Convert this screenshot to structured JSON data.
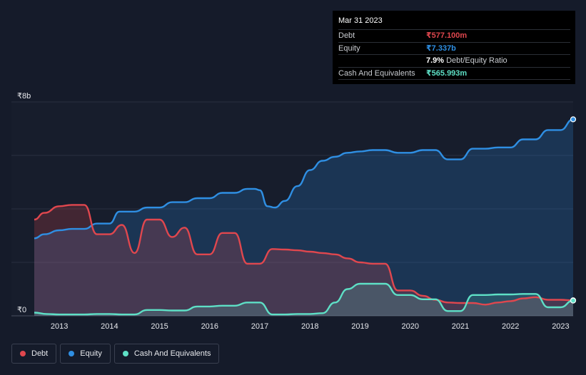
{
  "tooltip": {
    "date": "Mar 31 2023",
    "rows": [
      {
        "label": "Debt",
        "value": "₹577.100m",
        "color": "#e0474e"
      },
      {
        "label": "Equity",
        "value": "₹7.337b",
        "color": "#2f8fe3"
      },
      {
        "ratio_value": "7.9%",
        "ratio_label": "Debt/Equity Ratio"
      },
      {
        "label": "Cash And Equivalents",
        "value": "₹565.993m",
        "color": "#5ee0c6"
      }
    ]
  },
  "legend": [
    {
      "label": "Debt",
      "color": "#e0474e"
    },
    {
      "label": "Equity",
      "color": "#2f8fe3"
    },
    {
      "label": "Cash And Equivalents",
      "color": "#5ee0c6"
    }
  ],
  "chart_data": {
    "type": "area",
    "title": "",
    "xlabel": "",
    "ylabel": "",
    "y_unit": "₹ billions",
    "xlim": [
      2012.5,
      2023.25
    ],
    "ylim": [
      0,
      8
    ],
    "y_tick_labels": [
      {
        "value": 8,
        "label": "₹8b"
      },
      {
        "value": 0,
        "label": "₹0"
      }
    ],
    "gridlines": [
      0,
      2,
      4,
      6,
      8
    ],
    "x_ticks": [
      2013,
      2014,
      2015,
      2016,
      2017,
      2018,
      2019,
      2020,
      2021,
      2022,
      2023
    ],
    "x_tick_labels": [
      "2013",
      "2014",
      "2015",
      "2016",
      "2017",
      "2018",
      "2019",
      "2020",
      "2021",
      "2022",
      "2023"
    ],
    "series": [
      {
        "name": "Equity",
        "color": "#2f8fe3",
        "x": [
          2012.5,
          2012.7,
          2013.0,
          2013.25,
          2013.5,
          2013.75,
          2014.0,
          2014.2,
          2014.5,
          2014.75,
          2015.0,
          2015.25,
          2015.5,
          2015.75,
          2016.0,
          2016.25,
          2016.5,
          2016.75,
          2016.9,
          2017.0,
          2017.15,
          2017.3,
          2017.5,
          2017.75,
          2018.0,
          2018.25,
          2018.5,
          2018.75,
          2019.0,
          2019.25,
          2019.5,
          2019.75,
          2020.0,
          2020.25,
          2020.5,
          2020.75,
          2021.0,
          2021.25,
          2021.5,
          2021.75,
          2022.0,
          2022.25,
          2022.5,
          2022.75,
          2023.0,
          2023.25
        ],
        "values": [
          2.9,
          3.05,
          3.2,
          3.25,
          3.25,
          3.45,
          3.45,
          3.9,
          3.9,
          4.05,
          4.05,
          4.25,
          4.25,
          4.4,
          4.4,
          4.6,
          4.6,
          4.75,
          4.75,
          4.7,
          4.1,
          4.05,
          4.3,
          4.85,
          5.45,
          5.8,
          5.95,
          6.1,
          6.15,
          6.2,
          6.2,
          6.1,
          6.1,
          6.2,
          6.2,
          5.85,
          5.85,
          6.25,
          6.25,
          6.3,
          6.3,
          6.6,
          6.6,
          6.95,
          6.95,
          7.35
        ]
      },
      {
        "name": "Debt",
        "color": "#e0474e",
        "x": [
          2012.5,
          2012.7,
          2013.0,
          2013.25,
          2013.5,
          2013.75,
          2014.0,
          2014.25,
          2014.5,
          2014.75,
          2015.0,
          2015.25,
          2015.5,
          2015.75,
          2016.0,
          2016.25,
          2016.5,
          2016.75,
          2017.0,
          2017.25,
          2017.5,
          2017.75,
          2018.0,
          2018.25,
          2018.5,
          2018.75,
          2019.0,
          2019.25,
          2019.5,
          2019.75,
          2020.0,
          2020.25,
          2020.5,
          2020.75,
          2021.0,
          2021.25,
          2021.5,
          2021.75,
          2022.0,
          2022.25,
          2022.5,
          2022.75,
          2023.0,
          2023.25
        ],
        "values": [
          3.6,
          3.85,
          4.1,
          4.15,
          4.15,
          3.05,
          3.05,
          3.4,
          2.35,
          3.6,
          3.6,
          2.95,
          3.3,
          2.3,
          2.3,
          3.1,
          3.1,
          1.95,
          1.95,
          2.5,
          2.48,
          2.45,
          2.4,
          2.35,
          2.3,
          2.15,
          2.0,
          1.95,
          1.95,
          0.95,
          0.95,
          0.75,
          0.6,
          0.5,
          0.48,
          0.48,
          0.42,
          0.5,
          0.55,
          0.65,
          0.7,
          0.6,
          0.6,
          0.58
        ]
      },
      {
        "name": "Cash And Equivalents",
        "color": "#5ee0c6",
        "x": [
          2012.5,
          2012.75,
          2013.0,
          2013.25,
          2013.5,
          2013.75,
          2014.0,
          2014.25,
          2014.5,
          2014.75,
          2015.0,
          2015.25,
          2015.5,
          2015.75,
          2016.0,
          2016.25,
          2016.5,
          2016.75,
          2017.0,
          2017.25,
          2017.5,
          2017.75,
          2018.0,
          2018.25,
          2018.5,
          2018.75,
          2019.0,
          2019.25,
          2019.5,
          2019.75,
          2020.0,
          2020.25,
          2020.5,
          2020.75,
          2021.0,
          2021.25,
          2021.5,
          2021.75,
          2022.0,
          2022.25,
          2022.5,
          2022.75,
          2023.0,
          2023.25
        ],
        "values": [
          0.12,
          0.07,
          0.05,
          0.05,
          0.05,
          0.07,
          0.07,
          0.05,
          0.05,
          0.22,
          0.22,
          0.2,
          0.2,
          0.35,
          0.35,
          0.38,
          0.38,
          0.5,
          0.5,
          0.05,
          0.05,
          0.07,
          0.07,
          0.1,
          0.5,
          1.0,
          1.2,
          1.2,
          1.2,
          0.78,
          0.78,
          0.62,
          0.62,
          0.18,
          0.18,
          0.78,
          0.78,
          0.8,
          0.8,
          0.82,
          0.82,
          0.32,
          0.32,
          0.57
        ]
      }
    ]
  }
}
